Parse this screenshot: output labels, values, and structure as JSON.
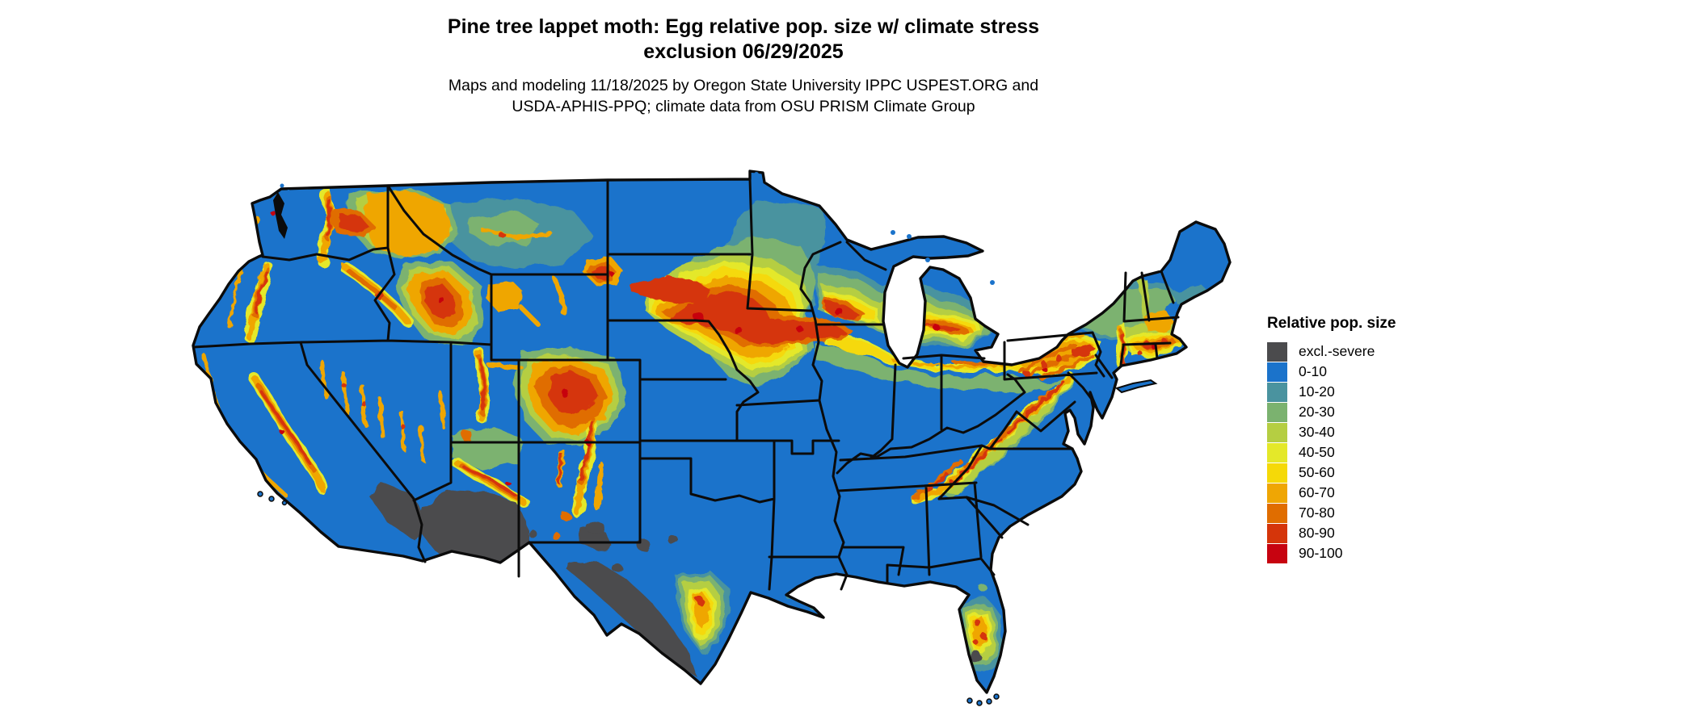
{
  "header": {
    "title_line1": "Pine tree lappet moth: Egg relative pop. size w/ climate stress",
    "title_line2": "exclusion 06/29/2025",
    "subtitle_line1": "Maps and modeling 11/18/2025 by Oregon State University IPPC USPEST.ORG and",
    "subtitle_line2": "USDA-APHIS-PPQ; climate data from OSU PRISM Climate Group"
  },
  "legend": {
    "title": "Relative pop. size",
    "items": [
      {
        "label": "excl.-severe",
        "palette": "excl"
      },
      {
        "label": "0-10",
        "palette": "b0"
      },
      {
        "label": "10-20",
        "palette": "b1"
      },
      {
        "label": "20-30",
        "palette": "b2"
      },
      {
        "label": "30-40",
        "palette": "b3"
      },
      {
        "label": "40-50",
        "palette": "b4"
      },
      {
        "label": "50-60",
        "palette": "b5"
      },
      {
        "label": "60-70",
        "palette": "b6"
      },
      {
        "label": "70-80",
        "palette": "b7"
      },
      {
        "label": "80-90",
        "palette": "b8"
      },
      {
        "label": "90-100",
        "palette": "b9"
      }
    ]
  },
  "palette": {
    "excl": "#4B4B4D",
    "b0": "#1B73CB",
    "b1": "#4A939F",
    "b2": "#7BB26F",
    "b3": "#B5CE42",
    "b4": "#E4E829",
    "b5": "#F5D908",
    "b6": "#EFA604",
    "b7": "#E06D00",
    "b8": "#D5350A",
    "b9": "#C70310",
    "border": "#0B0B0B",
    "background": "#FFFFFF"
  },
  "chart_data": {
    "type": "choropleth_map",
    "region": "Continental United States with state boundaries",
    "variable": "Relative pop. size",
    "date_shown": "06/29/2025",
    "classes": [
      "excl.-severe",
      "0-10",
      "10-20",
      "20-30",
      "30-40",
      "40-50",
      "50-60",
      "60-70",
      "70-80",
      "80-90",
      "90-100"
    ],
    "class_colors": [
      "#4B4B4D",
      "#1B73CB",
      "#4A939F",
      "#7BB26F",
      "#B5CE42",
      "#E4E829",
      "#F5D908",
      "#EFA604",
      "#E06D00",
      "#D5350A",
      "#C70310"
    ],
    "legend_position": "right",
    "visible_pattern": {
      "dominant_class": "0-10 (blue) across most of the country",
      "high_band": "60-90 band from Nebraska/South Dakota through Iowa, southern Wisconsin, southern Michigan, northern Ohio, Pennsylvania, southern New England",
      "mountain_highs": "Cascades, northeast Washington/Idaho panhandle, central Idaho, Sierra Nevada, Wasatch, Colorado Rockies, New Mexico ranges, Appalachians, Black Hills",
      "other_highs": "central Florida, south Texas coast",
      "excluded_gray": "southern Arizona, southeastern California deserts, southern/western Texas, spot in central Florida"
    }
  }
}
